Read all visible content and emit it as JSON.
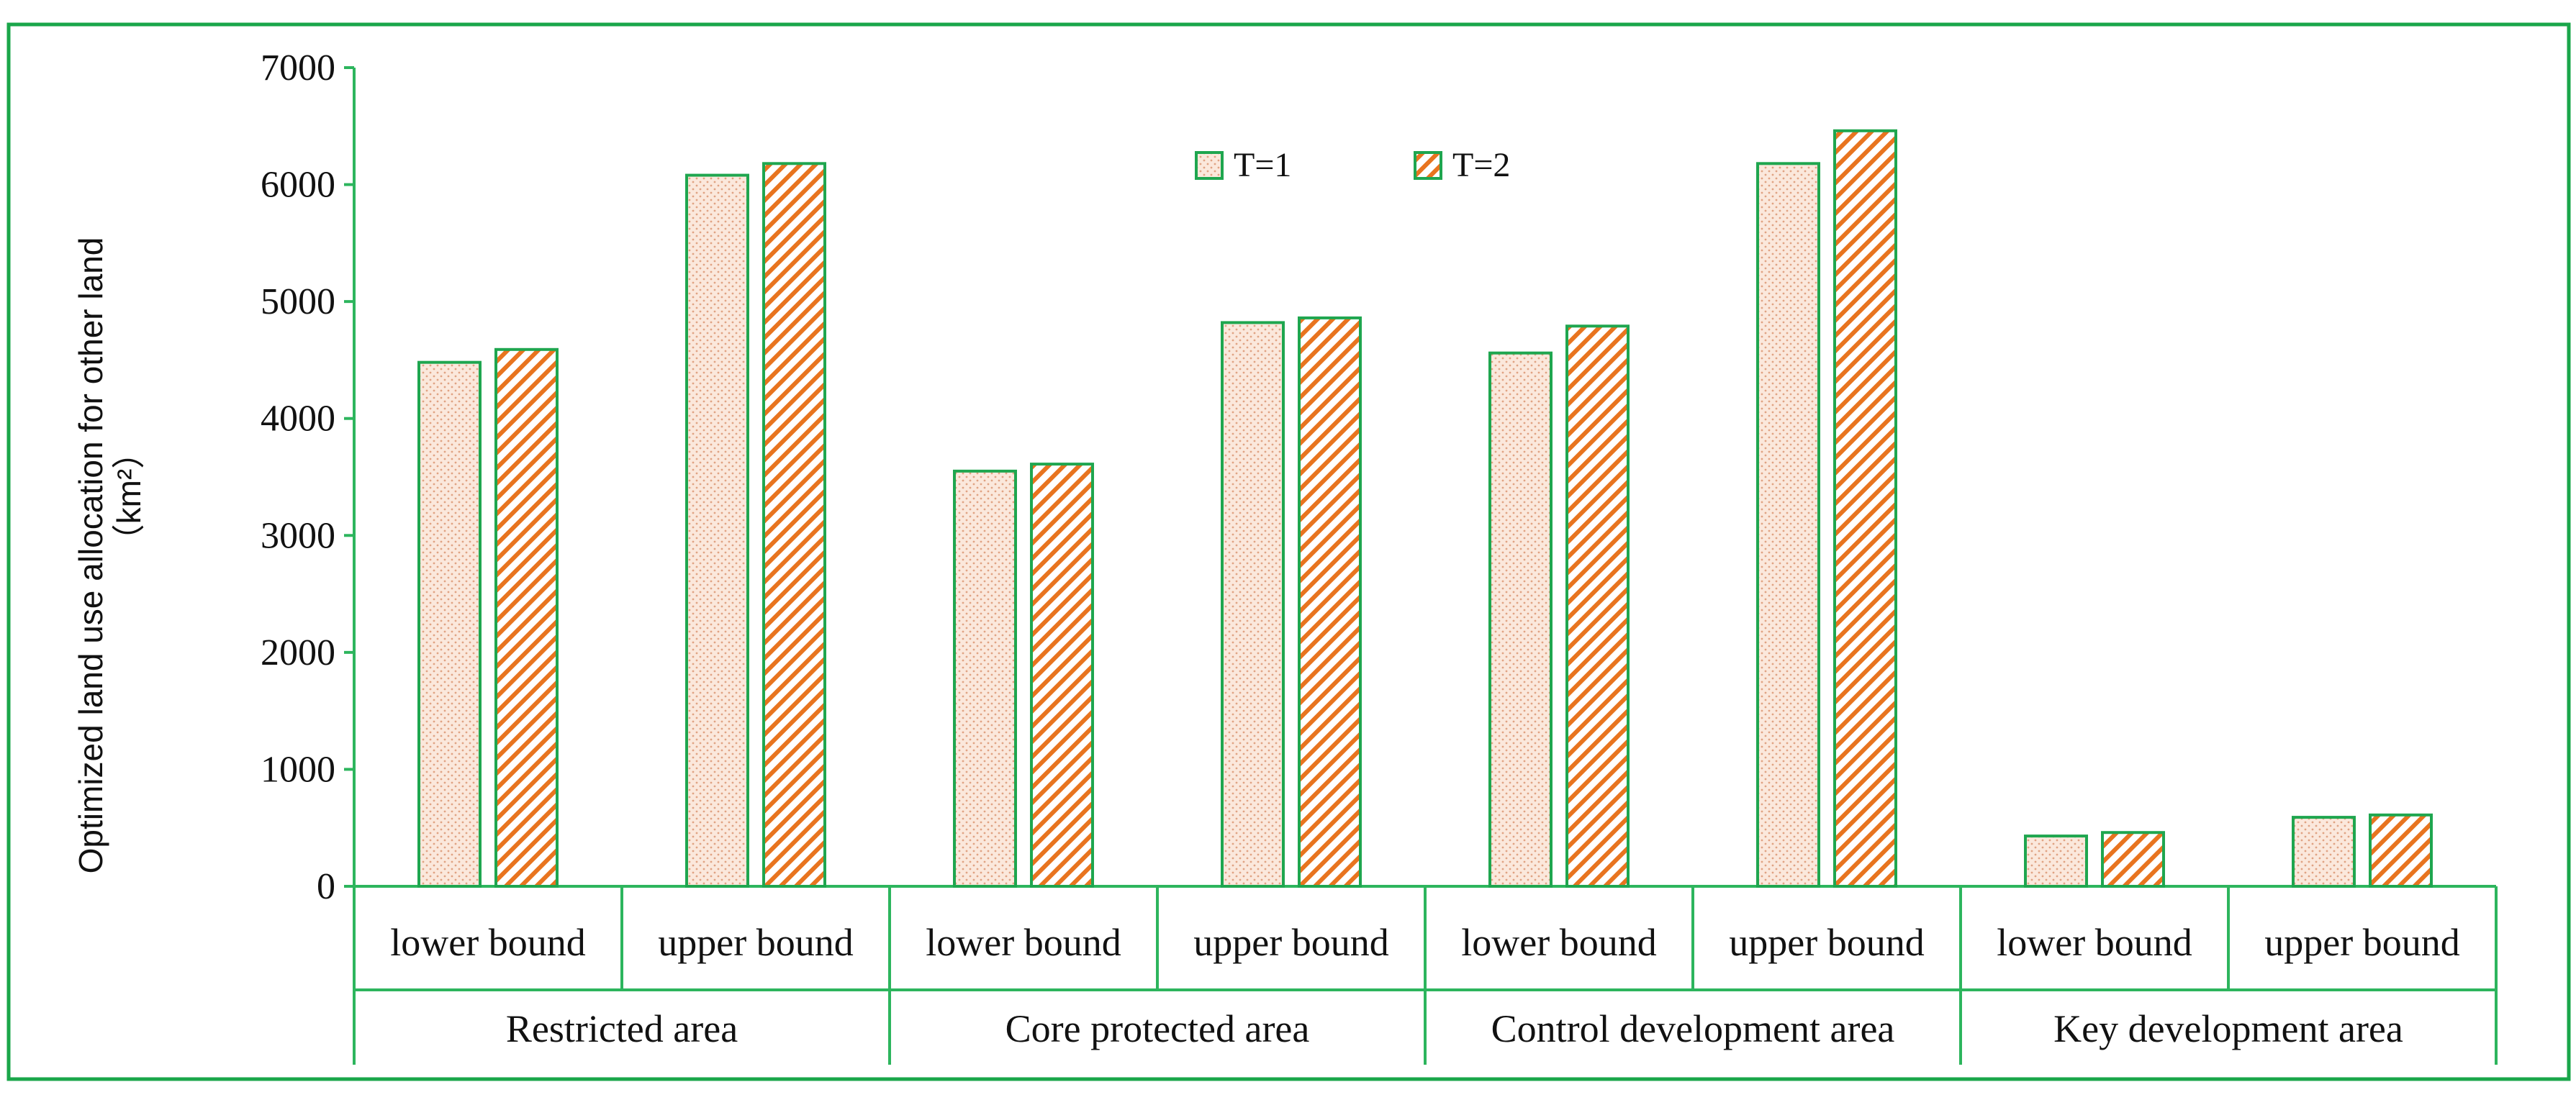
{
  "chart_data": {
    "type": "bar",
    "title": "",
    "ylabel_line1": "Optimized land use allocation for other land",
    "ylabel_line2": "（km²）",
    "ylim": [
      0,
      7000
    ],
    "yticks": [
      0,
      1000,
      2000,
      3000,
      4000,
      5000,
      6000,
      7000
    ],
    "groups": [
      "Restricted area",
      "Core protected area",
      "Control development area",
      "Key development area"
    ],
    "categories": [
      "lower bound",
      "upper bound",
      "lower bound",
      "upper bound",
      "lower bound",
      "upper bound",
      "lower bound",
      "upper bound"
    ],
    "series": [
      {
        "name": "T=1",
        "values": [
          4480,
          6080,
          3550,
          4820,
          4560,
          6180,
          430,
          590
        ]
      },
      {
        "name": "T=2",
        "values": [
          4590,
          6180,
          3610,
          4860,
          4790,
          6460,
          460,
          610
        ]
      }
    ],
    "legend_position": "top-center",
    "colors": {
      "frame": "#1aa64a",
      "axis": "#2db55d",
      "bar_fill_t1": "#fbe8dc",
      "bar_dots_t1": "#e0a383",
      "bar_fill_t2": "#ffffff",
      "bar_hatch_t2": "#e8741f",
      "bar_edge": "#1fa64f"
    }
  }
}
